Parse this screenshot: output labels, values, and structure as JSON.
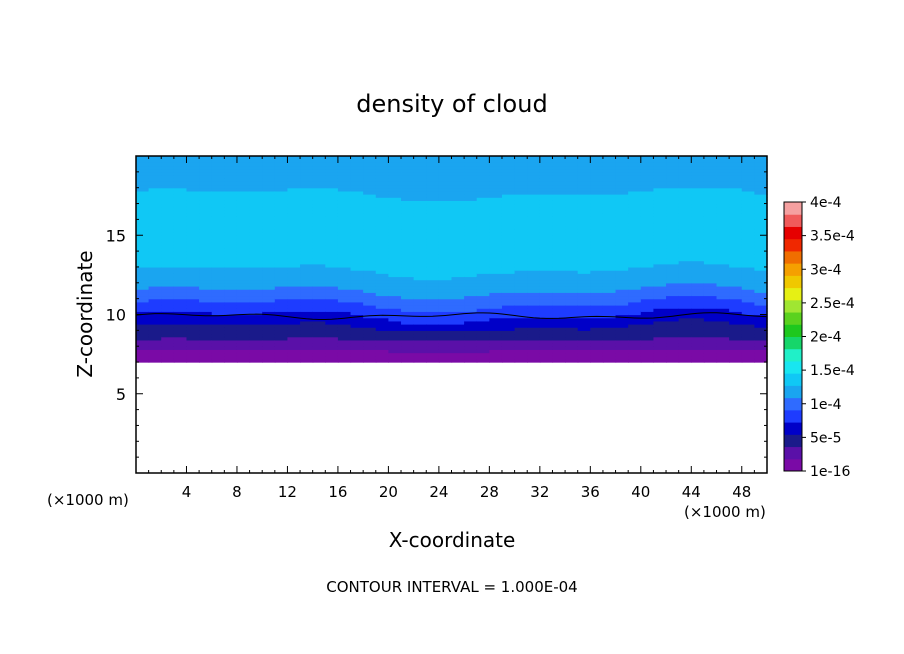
{
  "chart_data": {
    "type": "heatmap",
    "title": "density of cloud",
    "xlabel": "X-coordinate",
    "ylabel": "Z-coordinate",
    "x_unit_left": "(×1000 m)",
    "x_unit_right": "(×1000 m)",
    "xlim": [
      0,
      50
    ],
    "ylim": [
      0,
      20
    ],
    "xticks": [
      4,
      8,
      12,
      16,
      20,
      24,
      28,
      32,
      36,
      40,
      44,
      48
    ],
    "yticks": [
      5,
      10,
      15
    ],
    "footer": "CONTOUR INTERVAL = 1.000E-04",
    "colorbar": {
      "labels": [
        "1e-16",
        "5e-5",
        "1e-4",
        "1.5e-4",
        "2e-4",
        "2.5e-4",
        "3e-4",
        "3.5e-4",
        "4e-4"
      ],
      "label_values": [
        0,
        5e-05,
        0.0001,
        0.00015,
        0.0002,
        0.00025,
        0.0003,
        0.00035,
        0.0004
      ],
      "colors": [
        "#7a0aa6",
        "#5a10a8",
        "#1a1a8a",
        "#0000c8",
        "#1e3cff",
        "#2f6bff",
        "#1aa5f0",
        "#10c8f5",
        "#18e6f0",
        "#20f0c8",
        "#16d66a",
        "#1ec81e",
        "#5ad21e",
        "#a0e632",
        "#e6f014",
        "#f0c800",
        "#f5a000",
        "#f06e00",
        "#f02800",
        "#e60000",
        "#f05a5a",
        "#f5a0a0"
      ]
    },
    "profile_z": [
      0,
      7,
      7.4,
      7.8,
      8.2,
      8.6,
      9,
      9.4,
      9.8,
      10.2,
      10.6,
      11,
      11.5,
      12.2,
      13,
      16.5,
      17.4,
      18.2,
      20
    ],
    "profile_values": [
      0,
      1e-05,
      1e-05,
      2e-05,
      3e-05,
      4e-05,
      5e-05,
      6e-05,
      7e-05,
      8e-05,
      9e-05,
      0.0001,
      0.00011,
      0.00012,
      0.00013,
      0.00014,
      0.00013,
      0.00012,
      0.00012
    ],
    "cloud_base_km": 7,
    "contour_label": "1e-4 contour near z ≈ 10 km"
  }
}
